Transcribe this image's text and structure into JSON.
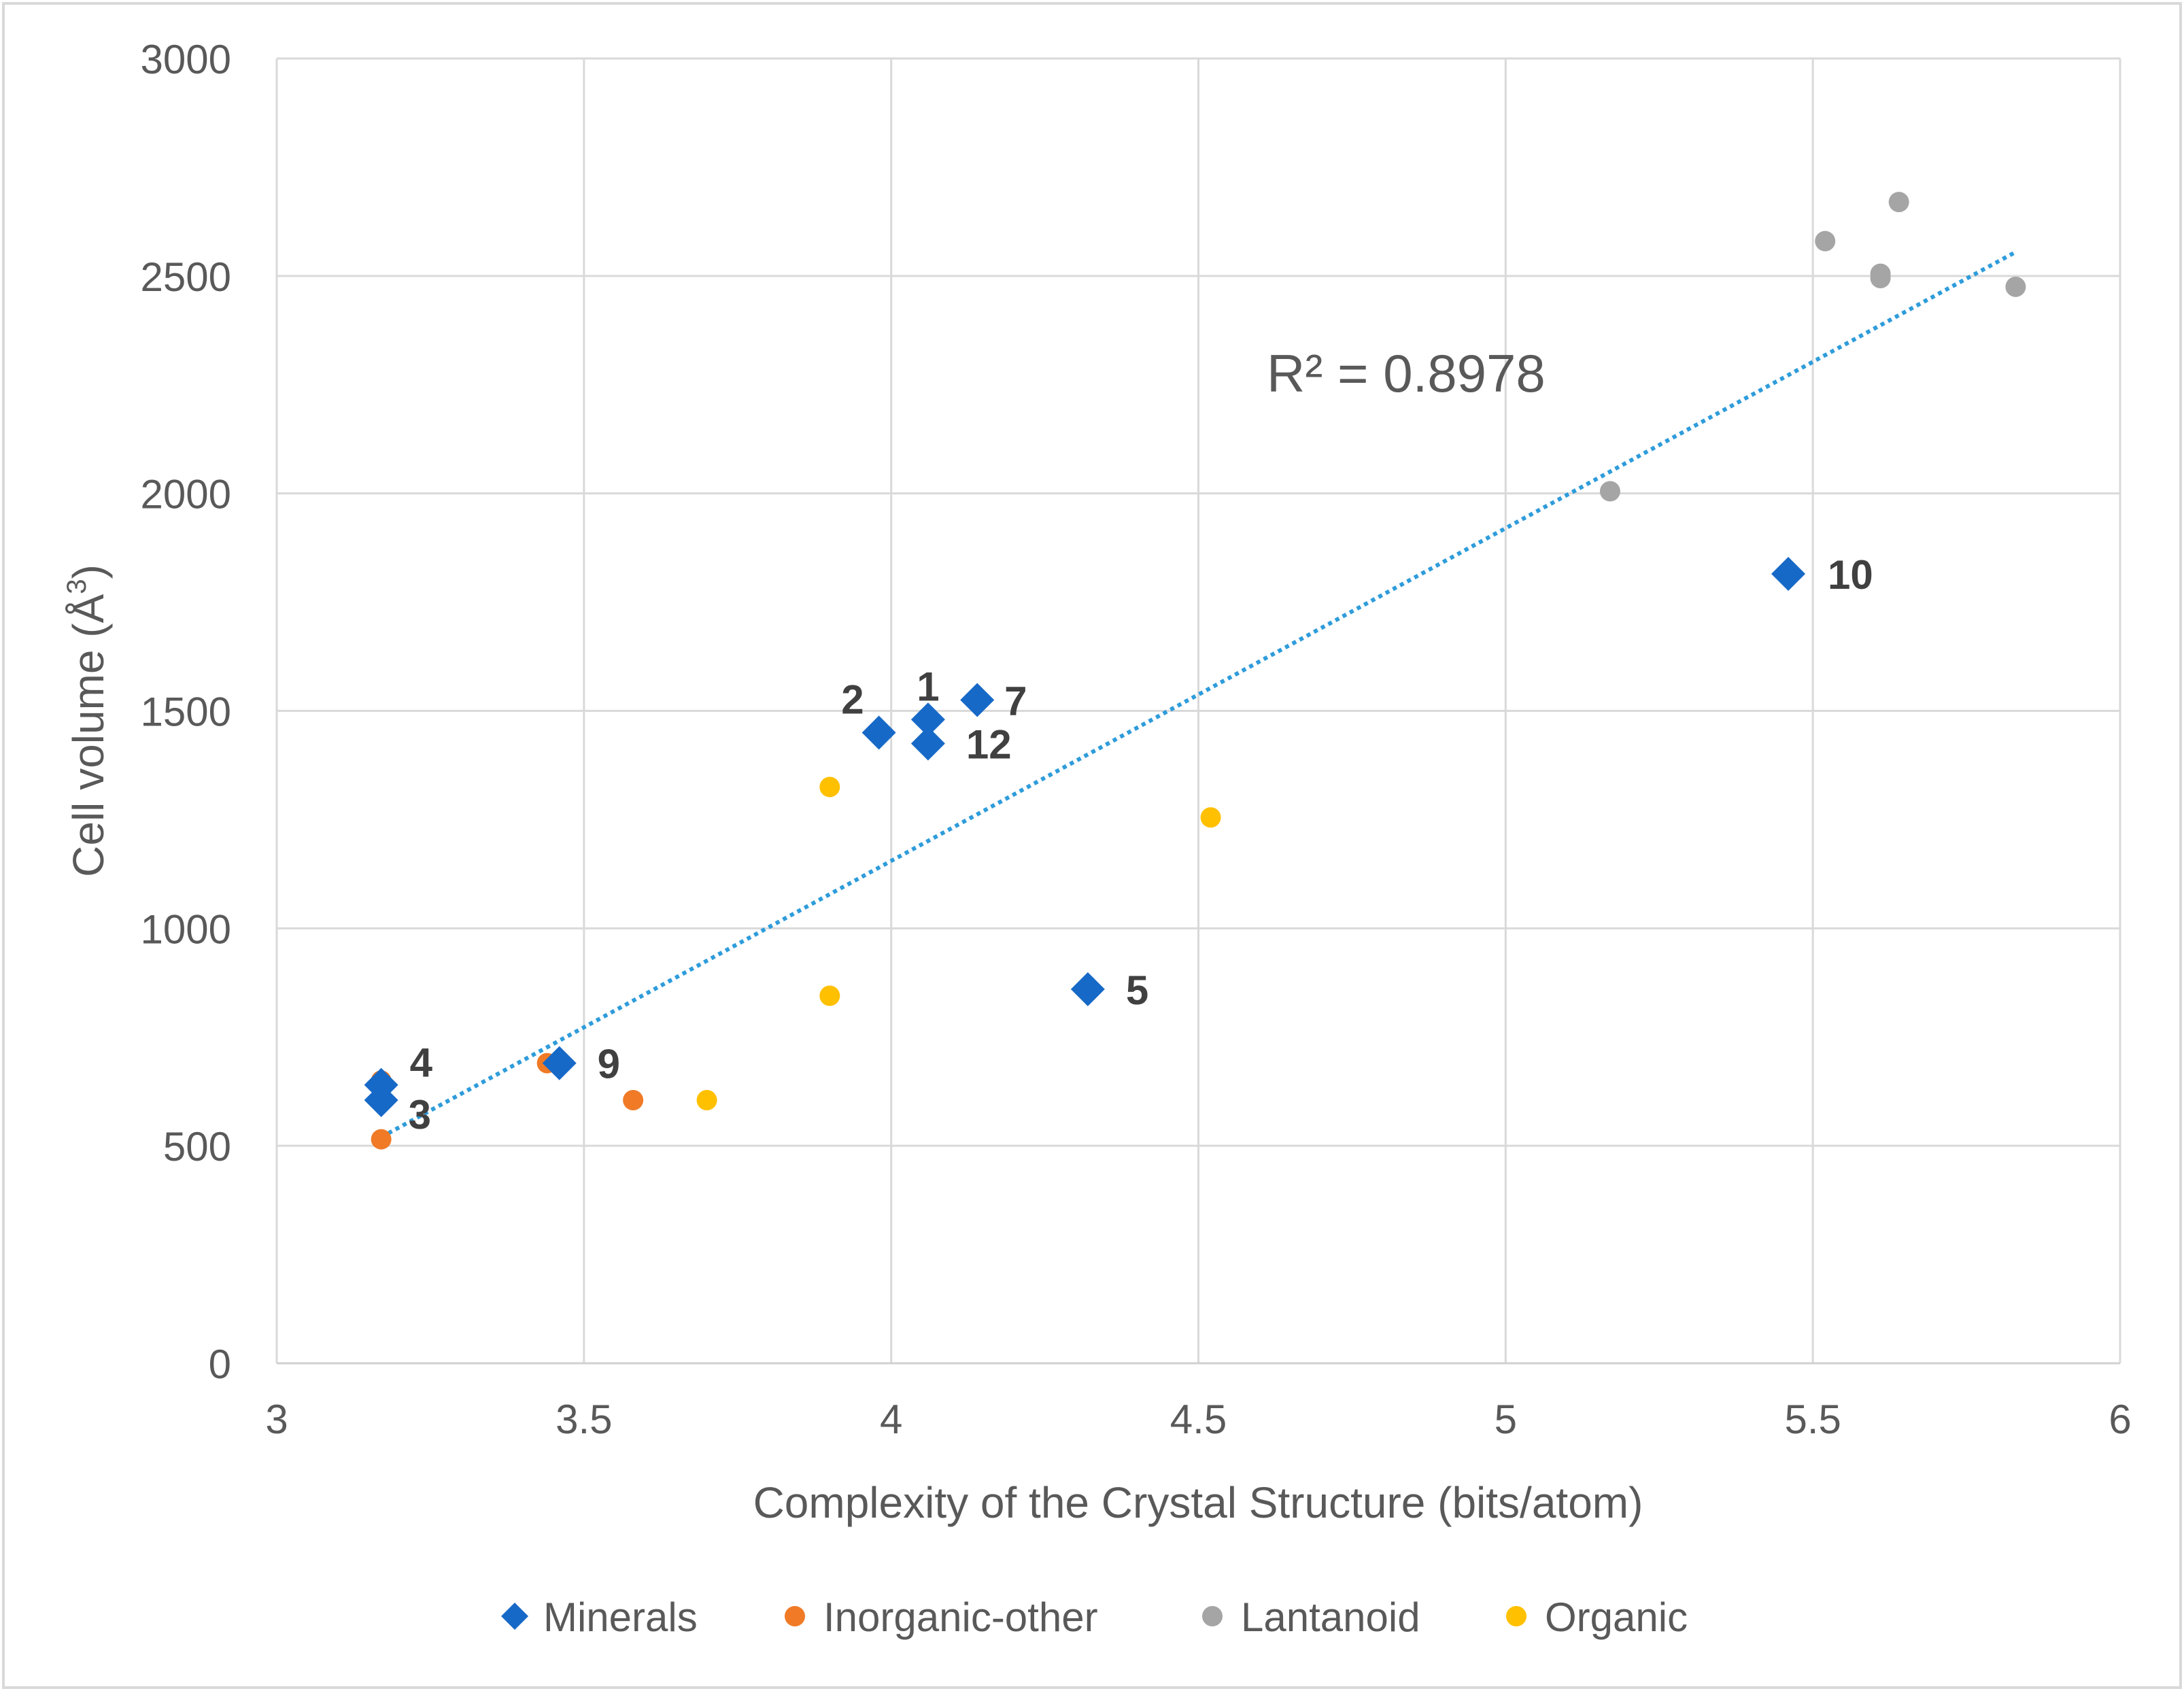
{
  "chart_data": {
    "type": "scatter",
    "title": "",
    "xlabel": "Complexity of the Crystal Structure (bits/atom)",
    "ylabel": "Cell volume (Å3)",
    "ylabel_base": "Cell volume (Å",
    "ylabel_sup": "3",
    "ylabel_end": ")",
    "xlim": [
      3,
      6
    ],
    "ylim": [
      0,
      3000
    ],
    "xticks": [
      "3",
      "3.5",
      "4",
      "4.5",
      "5",
      "5.5",
      "6"
    ],
    "xtick_values": [
      3,
      3.5,
      4,
      4.5,
      5,
      5.5,
      6
    ],
    "yticks": [
      "0",
      "500",
      "1000",
      "1500",
      "2000",
      "2500",
      "3000"
    ],
    "ytick_values": [
      0,
      500,
      1000,
      1500,
      2000,
      2500,
      3000
    ],
    "grid": true,
    "legend_position": "bottom",
    "series": [
      {
        "name": "Minerals",
        "marker": "diamond",
        "color": "#1769C7",
        "points": [
          {
            "x": 3.17,
            "y": 640,
            "label": "4"
          },
          {
            "x": 3.17,
            "y": 605,
            "label": "3"
          },
          {
            "x": 3.46,
            "y": 690,
            "label": "9"
          },
          {
            "x": 3.98,
            "y": 1450,
            "label": "2"
          },
          {
            "x": 4.06,
            "y": 1480,
            "label": "1"
          },
          {
            "x": 4.06,
            "y": 1425,
            "label": "12"
          },
          {
            "x": 4.14,
            "y": 1525,
            "label": "7"
          },
          {
            "x": 4.32,
            "y": 860,
            "label": "5"
          },
          {
            "x": 5.46,
            "y": 1815,
            "label": "10"
          }
        ]
      },
      {
        "name": "Inorganic-other",
        "marker": "circle",
        "color": "#F07A26",
        "points": [
          {
            "x": 3.17,
            "y": 650
          },
          {
            "x": 3.17,
            "y": 515
          },
          {
            "x": 3.44,
            "y": 690
          },
          {
            "x": 3.58,
            "y": 605
          }
        ]
      },
      {
        "name": "Lantanoid",
        "marker": "circle",
        "color": "#A5A5A5",
        "points": [
          {
            "x": 5.17,
            "y": 2005
          },
          {
            "x": 5.52,
            "y": 2580
          },
          {
            "x": 5.61,
            "y": 2505
          },
          {
            "x": 5.61,
            "y": 2495
          },
          {
            "x": 5.64,
            "y": 2670
          },
          {
            "x": 5.83,
            "y": 2475
          }
        ]
      },
      {
        "name": "Organic",
        "marker": "circle",
        "color": "#FFC000",
        "points": [
          {
            "x": 3.7,
            "y": 605
          },
          {
            "x": 3.9,
            "y": 1325
          },
          {
            "x": 3.9,
            "y": 845
          },
          {
            "x": 4.52,
            "y": 1255
          }
        ]
      }
    ],
    "trendline": {
      "type": "linear",
      "style": "dotted",
      "color": "#2E9CDB",
      "x_start": 3.17,
      "y_start": 520,
      "x_end": 5.83,
      "y_end": 2555,
      "r2_label": "R² = 0.8978"
    }
  }
}
